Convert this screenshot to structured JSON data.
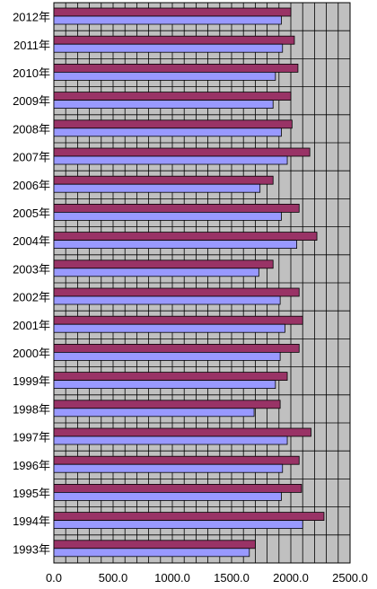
{
  "chart_data": {
    "type": "bar",
    "orientation": "horizontal",
    "categories": [
      "2012年",
      "2011年",
      "2010年",
      "2009年",
      "2008年",
      "2007年",
      "2006年",
      "2005年",
      "2004年",
      "2003年",
      "2002年",
      "2001年",
      "2000年",
      "1999年",
      "1998年",
      "1997年",
      "1996年",
      "1995年",
      "1994年",
      "1993年"
    ],
    "series": [
      {
        "values": [
          2000,
          2030,
          2060,
          2000,
          2010,
          2160,
          1850,
          2070,
          2220,
          1850,
          2070,
          2100,
          2070,
          1970,
          1910,
          2170,
          2070,
          2090,
          2280,
          1700
        ],
        "color": "#993366"
      },
      {
        "values": [
          1920,
          1930,
          1870,
          1850,
          1920,
          1970,
          1740,
          1920,
          2050,
          1730,
          1910,
          1950,
          1910,
          1870,
          1690,
          1970,
          1930,
          1920,
          2100,
          1650
        ],
        "color": "#9999ff"
      }
    ],
    "xlim": [
      0,
      2500
    ],
    "xticks": [
      "0.0",
      "500.0",
      "1000.0",
      "1500.0",
      "2000.0",
      "2500.0"
    ],
    "grid": true,
    "plot_background": "#c0c0c0"
  }
}
